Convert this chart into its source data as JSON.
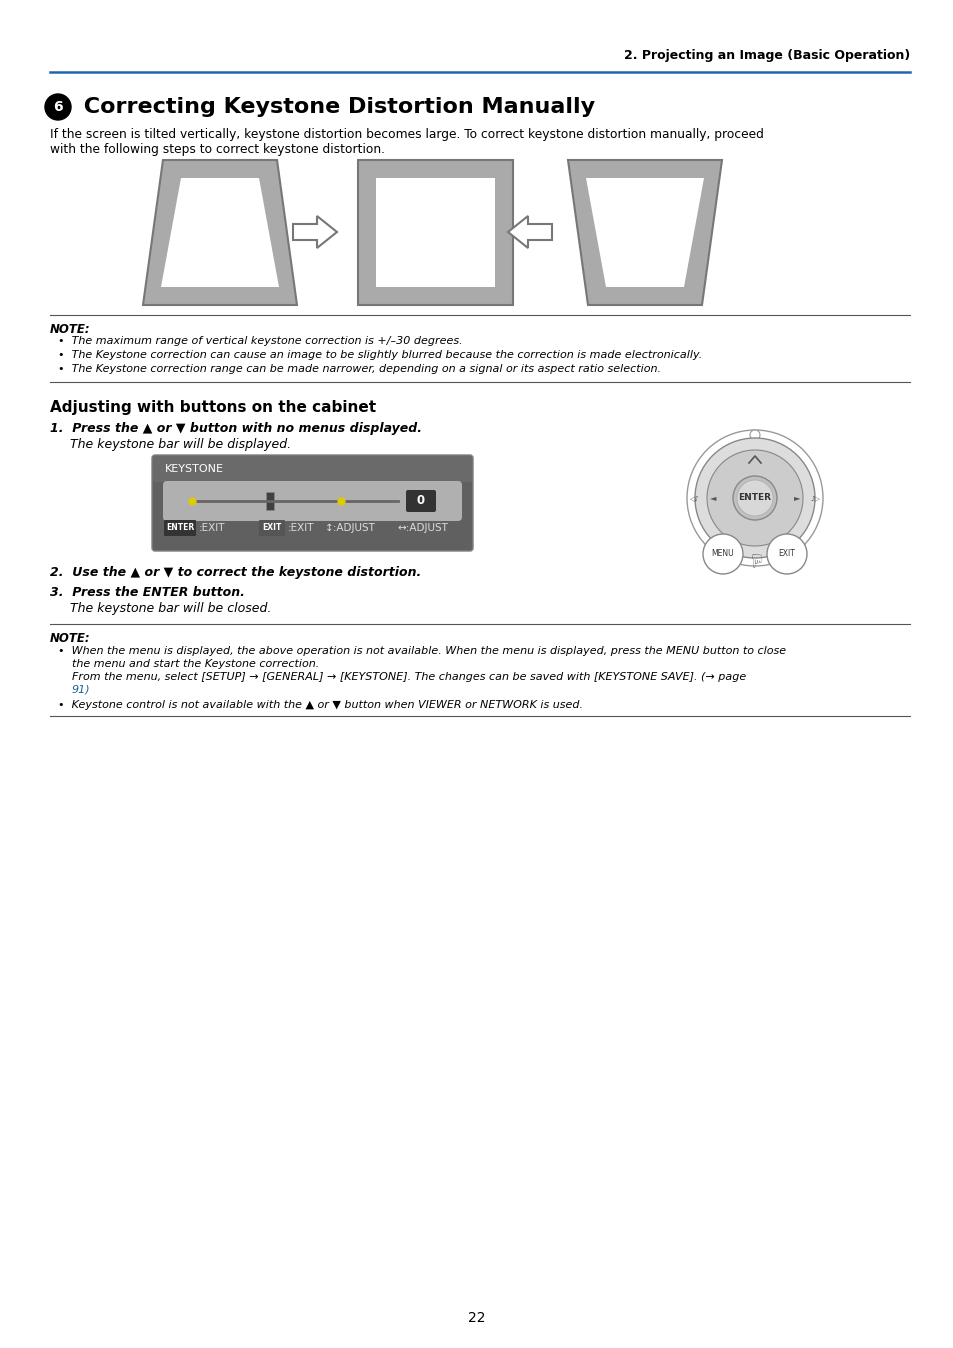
{
  "page_header": "2. Projecting an Image (Basic Operation)",
  "header_color": "#2266aa",
  "section_number": "6",
  "section_title": " Correcting Keystone Distortion Manually",
  "intro_line1": "If the screen is tilted vertically, keystone distortion becomes large. To correct keystone distortion manually, proceed",
  "intro_line2": "with the following steps to correct keystone distortion.",
  "note_label": "NOTE:",
  "note_bullets": [
    "The maximum range of vertical keystone correction is +/–30 degrees.",
    "The Keystone correction can cause an image to be slightly blurred because the correction is made electronically.",
    "The Keystone correction range can be made narrower, depending on a signal or its aspect ratio selection."
  ],
  "subsection_title": "Adjusting with buttons on the cabinet",
  "step1_bold": "1.  Press the ▲ or ▼ button with no menus displayed.",
  "step1_italic": "The keystone bar will be displayed.",
  "step2_bold": "2.  Use the ▲ or ▼ to correct the keystone distortion.",
  "step3_bold": "3.  Press the ENTER button.",
  "step3_italic": "The keystone bar will be closed.",
  "note2_label": "NOTE:",
  "note2_b1_l1": "When the menu is displayed, the above operation is not available. When the menu is displayed, press the MENU button to close",
  "note2_b1_l2": "the menu and start the Keystone correction.",
  "note2_b1_l3": "From the menu, select [SETUP] → [GENERAL] → [KEYSTONE]. The changes can be saved with [KEYSTONE SAVE]. (→ page",
  "note2_b1_l4_pre": "91)",
  "note2_b2": "Keystone control is not available with the ▲ or ▼ button when VIEWER or NETWORK is used.",
  "page_number": "22",
  "bg_color": "#ffffff",
  "text_color": "#000000",
  "gray_diag": "#aaaaaa",
  "link_color": "#1a6496"
}
